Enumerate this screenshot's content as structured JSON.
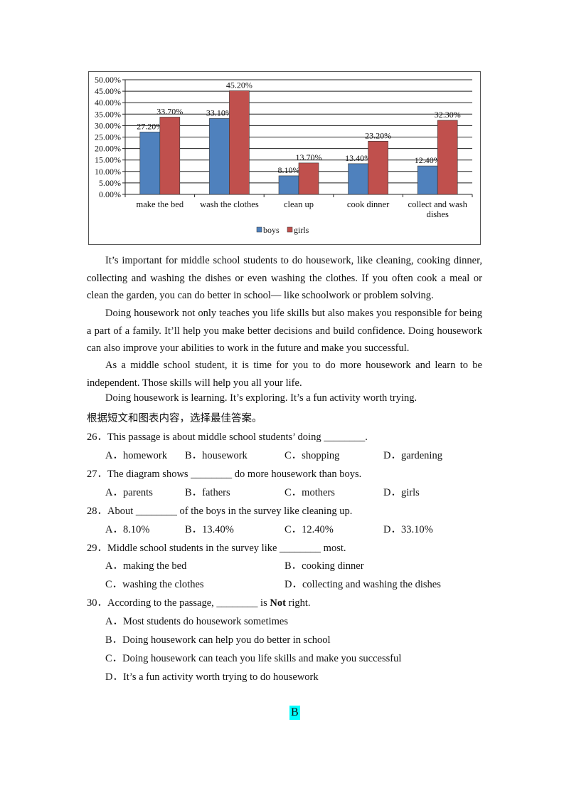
{
  "chart_data": {
    "type": "bar",
    "categories": [
      "make the bed",
      "wash the clothes",
      "clean up",
      "cook dinner",
      "collect and wash dishes"
    ],
    "category_lines": [
      [
        "make the bed"
      ],
      [
        "wash the clothes"
      ],
      [
        "clean up"
      ],
      [
        "cook dinner"
      ],
      [
        "collect and wash",
        "dishes"
      ]
    ],
    "series": [
      {
        "name": "boys",
        "values": [
          27.2,
          33.1,
          8.1,
          13.4,
          12.4
        ],
        "labels": [
          "27.20%",
          "33.10%",
          "8.10%",
          "13.40%",
          "12.40%"
        ],
        "color": "#4f81bd"
      },
      {
        "name": "girls",
        "values": [
          33.7,
          45.2,
          13.7,
          23.2,
          32.3
        ],
        "labels": [
          "33.70%",
          "45.20%",
          "13.70%",
          "23.20%",
          "32.30%"
        ],
        "color": "#c0504d"
      }
    ],
    "ylim": [
      0,
      50
    ],
    "yticks": [
      "0.00%",
      "5.00%",
      "10.00%",
      "15.00%",
      "20.00%",
      "25.00%",
      "30.00%",
      "35.00%",
      "40.00%",
      "45.00%",
      "50.00%"
    ],
    "grid": true,
    "legend": "bottom",
    "title": "",
    "xlabel": "",
    "ylabel": ""
  },
  "passage": [
    "It’s important for middle school students to do housework, like cleaning, cooking dinner, collecting and washing the dishes or even washing the clothes. If you often cook a meal or clean the garden, you can do better in school— like schoolwork or problem solving.",
    "Doing housework not only teaches you life skills but also makes you responsible for being a part of a family. It’ll help you make better decisions and build confidence. Doing housework can also improve your abilities to work in the future and make you successful.",
    "As a middle school student, it is time for you to do more housework and learn to be independent. Those skills will help you all your life.",
    "Doing housework is learning. It’s exploring. It’s a fun activity worth trying."
  ],
  "instruction": "根据短文和图表内容，选择最佳答案。",
  "questions": [
    {
      "stem": "26．This passage is about middle school students’ doing ________.",
      "options": [
        "A．homework",
        "B．housework",
        "C．shopping",
        "D．gardening"
      ]
    },
    {
      "stem": "27．The diagram shows ________ do more housework than boys.",
      "options": [
        "A．parents",
        "B．fathers",
        "C．mothers",
        "D．girls"
      ]
    },
    {
      "stem": "28．About ________ of the boys in the survey like cleaning up.",
      "options": [
        "A．8.10%",
        "B．13.40%",
        "C．12.40%",
        "D．33.10%"
      ]
    },
    {
      "stem": "29．Middle school students in the survey like ________ most.",
      "options": [
        "A．making the bed",
        "B．cooking dinner",
        "C．washing the clothes",
        "D．collecting and washing the dishes"
      ]
    },
    {
      "stem_before": "30．According to the passage, ________ is ",
      "stem_bold": "Not",
      "stem_after": " right.",
      "options": [
        "A．Most students do housework sometimes",
        "B．Doing housework can help you do better in school",
        "C．Doing housework can teach you life skills and make you successful",
        "D．It’s a fun activity worth trying to do housework"
      ]
    }
  ],
  "section_label": "B"
}
